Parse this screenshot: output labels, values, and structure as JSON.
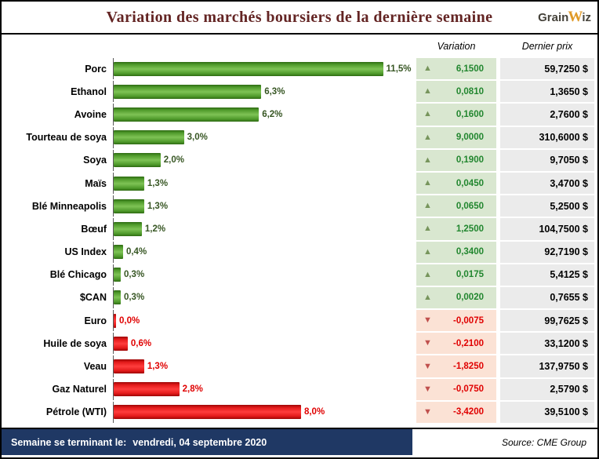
{
  "header": {
    "title": "Variation des marchés boursiers de la dernière semaine",
    "logo": {
      "part1": "Grain",
      "part2": "W",
      "part3": "iz"
    }
  },
  "columns": {
    "variation": "Variation",
    "dernier_prix": "Dernier prix"
  },
  "icons": {
    "up": "▲",
    "down": "▼"
  },
  "colors": {
    "title": "#632423",
    "positive_bar": "#4ea72e",
    "negative_bar": "#ff0000",
    "positive_cell_bg": "#d9e7d0",
    "negative_cell_bg": "#fbe2d5",
    "price_cell_bg": "#ebebeb",
    "footer_bg": "#1f3864",
    "logo_accent": "#e09a28"
  },
  "chart_data": {
    "type": "bar",
    "orientation": "horizontal",
    "title": "Variation des marchés boursiers de la dernière semaine",
    "xlabel": "",
    "ylabel": "",
    "xlim": [
      0,
      11.5
    ],
    "grid": false,
    "legend": false,
    "categories": [
      "Porc",
      "Ethanol",
      "Avoine",
      "Tourteau de soya",
      "Soya",
      "Maïs",
      "Blé Minneapolis",
      "Bœuf",
      "US Index",
      "Blé Chicago",
      "$CAN",
      "Euro",
      "Huile de soya",
      "Veau",
      "Gaz Naturel",
      "Pétrole (WTI)"
    ],
    "series": [
      {
        "name": "Variation",
        "values": [
          11.5,
          6.3,
          6.2,
          3.0,
          2.0,
          1.3,
          1.3,
          1.2,
          0.4,
          0.3,
          0.3,
          0.0,
          -0.6,
          -1.3,
          -2.8,
          -8.0
        ]
      }
    ],
    "value_labels": [
      "11,5%",
      "6,3%",
      "6,2%",
      "3,0%",
      "2,0%",
      "1,3%",
      "1,3%",
      "1,2%",
      "0,4%",
      "0,3%",
      "0,3%",
      "0,0%",
      "0,6%",
      "1,3%",
      "2,8%",
      "8,0%"
    ],
    "directions": [
      "up",
      "up",
      "up",
      "up",
      "up",
      "up",
      "up",
      "up",
      "up",
      "up",
      "up",
      "down",
      "down",
      "down",
      "down",
      "down"
    ],
    "variations": [
      "6,1500",
      "0,0810",
      "0,1600",
      "9,0000",
      "0,1900",
      "0,0450",
      "0,0650",
      "1,2500",
      "0,3400",
      "0,0175",
      "0,0020",
      "-0,0075",
      "-0,2100",
      "-1,8250",
      "-0,0750",
      "-3,4200"
    ],
    "last_prices": [
      "59,7250 $",
      "1,3650 $",
      "2,7600 $",
      "310,6000 $",
      "9,7050 $",
      "3,4700 $",
      "5,2500 $",
      "104,7500 $",
      "92,7190 $",
      "5,4125 $",
      "0,7655 $",
      "99,7625 $",
      "33,1200 $",
      "137,9750 $",
      "2,5790 $",
      "39,5100 $"
    ]
  },
  "footer": {
    "week_label": "Semaine se terminant le:",
    "week_value": "vendredi, 04 septembre 2020",
    "source": "Source: CME Group"
  }
}
